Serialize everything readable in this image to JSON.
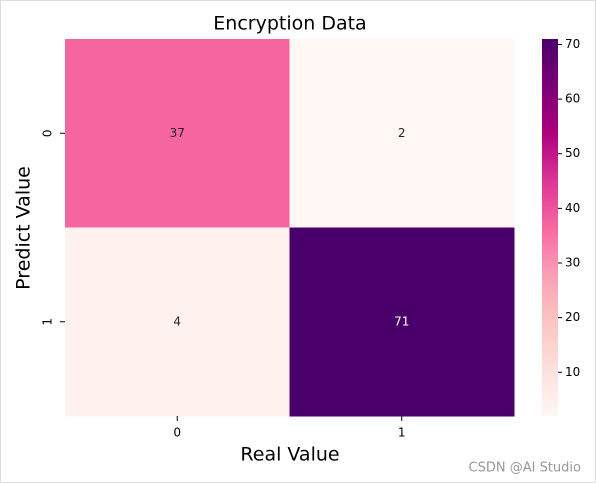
{
  "chart_data": {
    "type": "heatmap",
    "title": "Encryption Data",
    "x_label": "Real Value",
    "y_label": "Predict Value",
    "x_categories": [
      "0",
      "1"
    ],
    "y_categories": [
      "0",
      "1"
    ],
    "values": [
      [
        37,
        2
      ],
      [
        4,
        71
      ]
    ],
    "colorscale": [
      "#fff7f3",
      "#fde0dd",
      "#fcc5c0",
      "#fa9fb5",
      "#f768a1",
      "#dd3497",
      "#ae017e",
      "#7a0177",
      "#49006a"
    ],
    "zlim": [
      2,
      71
    ],
    "zticks": [
      10,
      20,
      30,
      40,
      50,
      60,
      70
    ],
    "watermark": "CSDN @AI Studio"
  }
}
